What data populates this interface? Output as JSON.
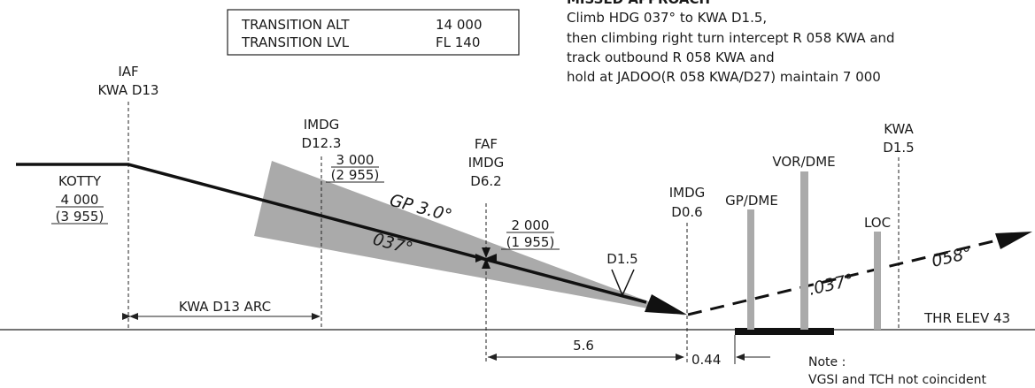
{
  "missed_approach": {
    "heading": "MISSED APPROACH",
    "lines": [
      "Climb HDG 037° to KWA D1.5,",
      "then climbing right turn intercept R 058 KWA and",
      "track outbound R 058 KWA and",
      "hold at JADOO(R 058 KWA/D27) maintain 7 000"
    ]
  },
  "transition_box": {
    "alt_label": "TRANSITION ALT",
    "alt_value": "14 000",
    "lvl_label": "TRANSITION LVL",
    "lvl_value": "FL 140"
  },
  "fixes": {
    "iaf_name": "IAF",
    "iaf_dist": "KWA D13",
    "imdg1_name": "IMDG",
    "imdg1_dist": "D12.3",
    "faf_name": "FAF",
    "faf_sub": "IMDG",
    "faf_dist": "D6.2",
    "imdg2_name": "IMDG",
    "imdg2_dist": "D0.6",
    "kwa_name": "KWA",
    "kwa_dist": "D1.5"
  },
  "altitudes": {
    "kotty_name": "KOTTY",
    "kotty_alt": "4 000",
    "kotty_height": "(3 955)",
    "imdg1_alt": "3 000",
    "imdg1_height": "(2 955)",
    "faf_alt": "2 000",
    "faf_height": "(1 955)"
  },
  "labels": {
    "gp": "GP 3.0°",
    "course_in": "037°",
    "d15": "D1.5",
    "course_missed": ".037°",
    "course_out": "058°",
    "gp_dme": "GP/DME",
    "vor_dme": "VOR/DME",
    "loc": "LOC",
    "arc": "KWA D13 ARC",
    "dist_56": "5.6",
    "dist_044": "0.44",
    "thr_elev": "THR ELEV 43",
    "note_title": "Note :",
    "note_text": "VGSI and TCH not coincident"
  }
}
